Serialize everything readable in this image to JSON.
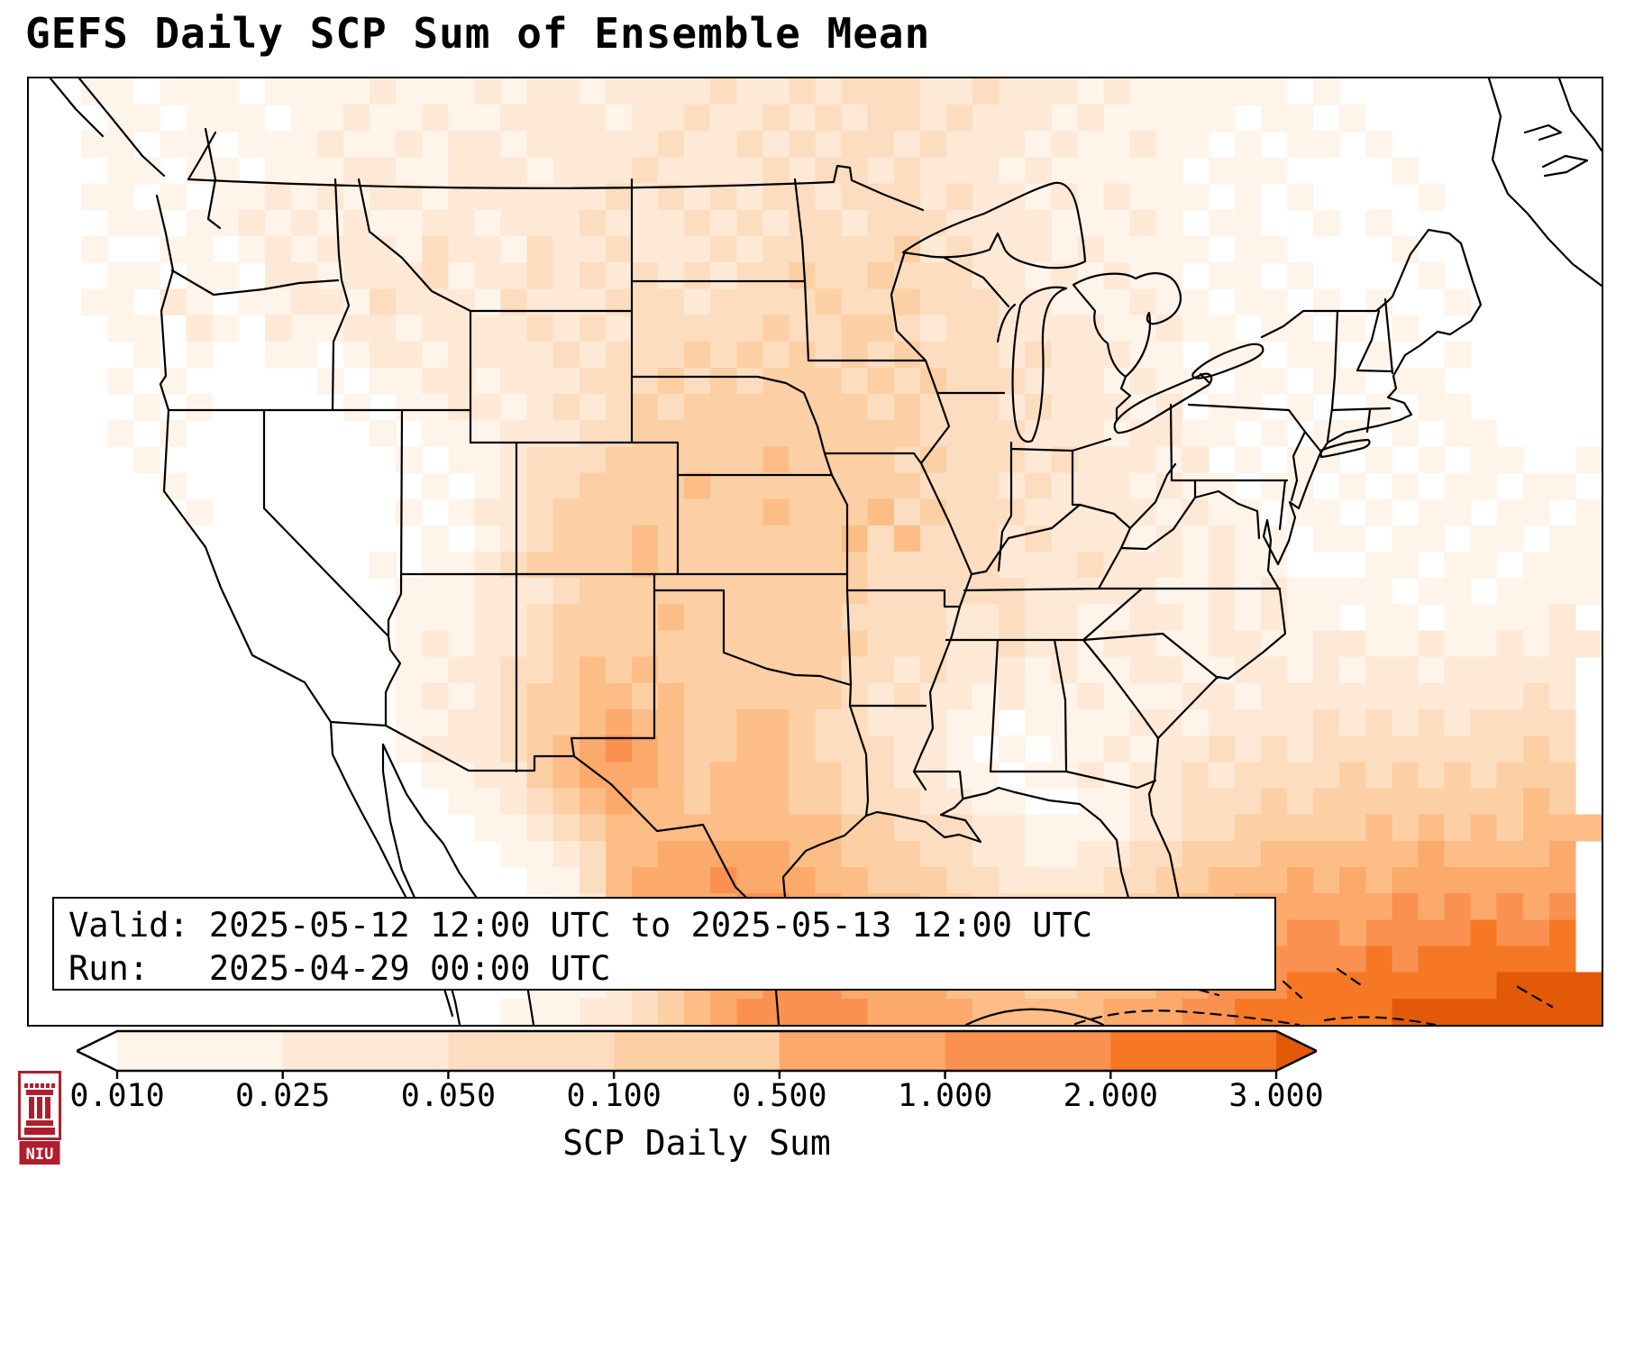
{
  "title": "GEFS Daily SCP Sum of Ensemble Mean",
  "info_box": {
    "valid_line": "Valid: 2025-05-12 12:00 UTC to 2025-05-13 12:00 UTC",
    "run_line": "Run:   2025-04-29 00:00 UTC"
  },
  "colorbar": {
    "label": "SCP Daily Sum",
    "ticks": [
      "0.010",
      "0.025",
      "0.050",
      "0.100",
      "0.500",
      "1.000",
      "2.000",
      "3.000"
    ],
    "segment_colors": [
      "#fef4ea",
      "#fde9d6",
      "#fdddc0",
      "#fdcfa4",
      "#fca96c",
      "#fb9151",
      "#f67824"
    ],
    "under_arrow_color": "#ffffff",
    "over_arrow_color": "#e25a07",
    "outline_color": "#000000"
  },
  "logo": {
    "text": "NIU",
    "color": "#b01e2e"
  },
  "map": {
    "line_color": "#000000",
    "background": "#ffffff"
  },
  "chart_data": {
    "type": "heatmap",
    "title": "GEFS Daily SCP Sum of Ensemble Mean",
    "valid": "2025-05-12 12:00 UTC to 2025-05-13 12:00 UTC",
    "run": "2025-04-29 00:00 UTC",
    "colorbar_label": "SCP Daily Sum",
    "colorbar_ticks": [
      0.01,
      0.025,
      0.05,
      0.1,
      0.5,
      1.0,
      2.0,
      3.0
    ],
    "legend_position": "bottom",
    "grid": {
      "cols": 60,
      "rows": 36,
      "level_colors": [
        "#ffffff",
        "#fef4ea",
        "#fde9d6",
        "#fdddc0",
        "#fdcfa4",
        "#fdbd87",
        "#fca96c",
        "#fb9151",
        "#f67824",
        "#e25a07"
      ],
      "cells": [
        "001101110111121112122122223223233322322212111111010000000000",
        "000110111011211211222212232232323323222121111101101000000000",
        "001101101112112122122222322323233232221211211010110100000000",
        "000110110111221122212223222232332322212111110111000010000000",
        "001101011212122122222232323233233323221212111010100001000000",
        "000110112121211221222322232323323332222111210110010100000000",
        "001001101212221322132232223233333423222121111011000010000000",
        "000110110221222312232323232334334333221212110110100001000000",
        "001102101122132221322233323333433433322111211011010100100000",
        "000110210211221222232323333343344323322221121101101010000000",
        "000010100110122122223233343434343433323222110110110100100000",
        "000101000001011221222333434344434343332221211011011011000000",
        "000010100000101122123234344444443433323222120110100101100000",
        "000101000000010111222334444444444433332221221101011010110000",
        "000010000000001011233344444454444343332322212010110101011001",
        "000001000000000101233444454444444433323222121101101010110110",
        "000000100000001012234444444454445343332222212110110101101101",
        "000000000000000101234445444444453533323222121211011011011011",
        "000000000000010112344445444444443333322232221211000110110111",
        "000000000000001112223444444444443333332222211212111101101111",
        "000000000000001112234444544444433332232211221212110110111120",
        "000000000000001212234444444444443332232212211221122112112122",
        "000000000000001122334545444444433232221211221122121221222220",
        "000000000000001212344554544444432322121121112212222222222320",
        "000000000000001122344565544554332221101111221222232323233330",
        "000000000000001222345676544554333221010112122323233333333430",
        "000000000000000112245666545554433221101121223233334343434440",
        "000000000000000011234565545554433322110011223334344444444540",
        "000000000000000001123455555555544333221111223344444545454555",
        "000000000000000000112355666665544433221122334445555556555560",
        "000000000000000000011356667666554443322223344555656566666660",
        "000000000000000000001256666776655544333333445566666676767670",
        "000000000000000000001245666777665554433344455666776777787780",
        "000000000000000000000134566777666555444445556677777878888880",
        "000000000000000000011123456677766665554455566777888888889999",
        "000000000000000000111223456777776666555556667788888899999999"
      ]
    }
  }
}
